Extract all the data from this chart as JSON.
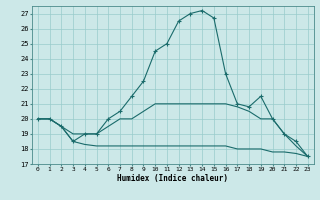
{
  "xlabel": "Humidex (Indice chaleur)",
  "bg_color": "#cce8e8",
  "line_color": "#1a6b6b",
  "grid_color": "#99cccc",
  "xlim": [
    -0.5,
    23.5
  ],
  "ylim": [
    17,
    27.5
  ],
  "yticks": [
    17,
    18,
    19,
    20,
    21,
    22,
    23,
    24,
    25,
    26,
    27
  ],
  "xticks": [
    0,
    1,
    2,
    3,
    4,
    5,
    6,
    7,
    8,
    9,
    10,
    11,
    12,
    13,
    14,
    15,
    16,
    17,
    18,
    19,
    20,
    21,
    22,
    23
  ],
  "series_main_x": [
    0,
    1,
    2,
    3,
    4,
    5,
    6,
    7,
    8,
    9,
    10,
    11,
    12,
    13,
    14,
    15,
    16,
    17,
    18,
    19,
    20,
    21,
    22,
    23
  ],
  "series_main_y": [
    20.0,
    20.0,
    19.5,
    18.5,
    19.0,
    19.0,
    20.0,
    20.5,
    21.5,
    22.5,
    24.5,
    25.0,
    26.5,
    27.0,
    27.2,
    26.7,
    23.0,
    21.0,
    20.8,
    21.5,
    20.0,
    19.0,
    18.5,
    17.5
  ],
  "series_mid_x": [
    0,
    1,
    2,
    3,
    4,
    5,
    6,
    7,
    8,
    9,
    10,
    11,
    12,
    13,
    14,
    15,
    16,
    17,
    18,
    19,
    20,
    21,
    22,
    23
  ],
  "series_mid_y": [
    20.0,
    20.0,
    19.5,
    19.0,
    19.0,
    19.0,
    19.5,
    20.0,
    20.0,
    20.5,
    21.0,
    21.0,
    21.0,
    21.0,
    21.0,
    21.0,
    21.0,
    20.8,
    20.5,
    20.0,
    20.0,
    19.0,
    18.2,
    17.5
  ],
  "series_low_x": [
    0,
    1,
    2,
    3,
    4,
    5,
    6,
    7,
    8,
    9,
    10,
    11,
    12,
    13,
    14,
    15,
    16,
    17,
    18,
    19,
    20,
    21,
    22,
    23
  ],
  "series_low_y": [
    20.0,
    20.0,
    19.5,
    18.5,
    18.3,
    18.2,
    18.2,
    18.2,
    18.2,
    18.2,
    18.2,
    18.2,
    18.2,
    18.2,
    18.2,
    18.2,
    18.2,
    18.0,
    18.0,
    18.0,
    17.8,
    17.8,
    17.7,
    17.5
  ]
}
